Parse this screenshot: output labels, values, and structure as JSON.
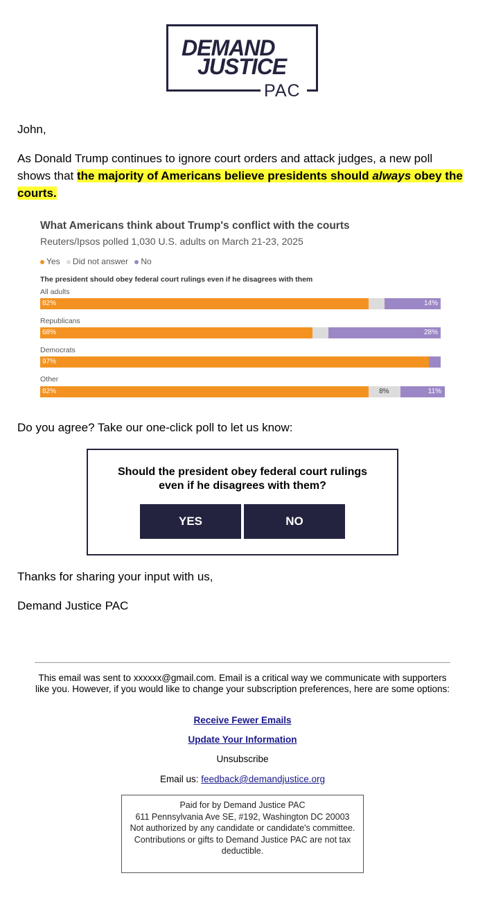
{
  "logo": {
    "line1": "DEMAND",
    "line2": "JUSTICE",
    "pac": "PAC"
  },
  "greeting": "John,",
  "intro": {
    "text": "As Donald Trump continues to ignore court orders and attack judges, a new poll shows that ",
    "highlight_a": "the majority of Americans believe presidents should ",
    "highlight_em": "always",
    "highlight_b": " obey the courts."
  },
  "chart_data": {
    "type": "bar",
    "title": "What Americans think about Trump's conflict with the courts",
    "subtitle": "Reuters/Ipsos polled 1,030 U.S. adults on March 21-23, 2025",
    "question": "The president should obey federal court rulings even if he disagrees with them",
    "legend": [
      {
        "name": "Yes",
        "color": "#f39220"
      },
      {
        "name": "Did not answer",
        "color": "#dcdcdc"
      },
      {
        "name": "No",
        "color": "#9b87c6"
      }
    ],
    "categories": [
      "All adults",
      "Republicans",
      "Democrats",
      "Other"
    ],
    "series": [
      {
        "name": "Yes",
        "values": [
          82,
          68,
          97,
          82
        ]
      },
      {
        "name": "Did not answer",
        "values": [
          4,
          4,
          0,
          8
        ]
      },
      {
        "name": "No",
        "values": [
          14,
          28,
          3,
          11
        ]
      }
    ],
    "labels": [
      [
        "82%",
        "",
        "14%"
      ],
      [
        "68%",
        "",
        "28%"
      ],
      [
        "97%",
        "",
        ""
      ],
      [
        "82%",
        "8%",
        "11%"
      ]
    ]
  },
  "prompt": "Do you agree? Take our one-click poll to let us know:",
  "poll": {
    "question": "Should the president obey federal court rulings even if he disagrees with them?",
    "yes": "YES",
    "no": "NO"
  },
  "thanks": "Thanks for sharing your input with us,",
  "signature": "Demand Justice PAC",
  "footer": {
    "sent_text": "This email was sent to xxxxxx@gmail.com. Email is a critical way we communicate with supporters like you. However, if you would like to change your subscription preferences, here are some options:",
    "fewer": "Receive Fewer Emails",
    "update": "Update Your Information",
    "unsubscribe": "Unsubscribe",
    "email_label": "Email us: ",
    "email": "feedback@demandjustice.org",
    "disclaimer": [
      "Paid for by Demand Justice PAC",
      "611 Pennsylvania Ave SE, #192, Washington DC 20003",
      "Not authorized by any candidate or candidate's committee.",
      "Contributions or gifts to Demand Justice PAC are not tax deductible."
    ]
  },
  "colors": {
    "navy": "#23233f",
    "highlight": "#ffff33",
    "yes": "#f39220",
    "na": "#dcdcdc",
    "no": "#9b87c6"
  }
}
